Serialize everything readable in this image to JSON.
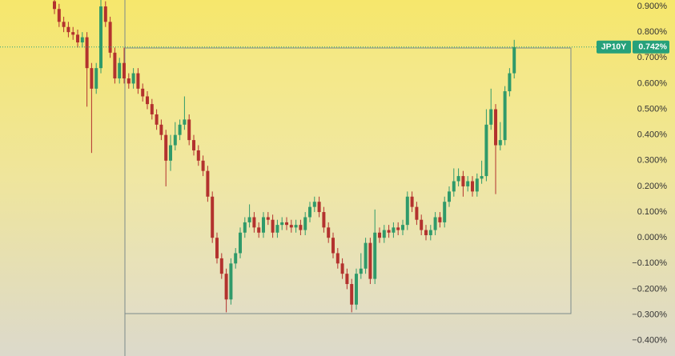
{
  "chart_data": {
    "type": "candlestick",
    "symbol": "JP10Y",
    "price_tag": {
      "value": 0.742,
      "label": "0.742%"
    },
    "up_color": "#2f9a6a",
    "down_color": "#b3322e",
    "tag_color": "#26a17a",
    "ylim": [
      -0.46,
      0.925
    ],
    "yticks": [
      {
        "value": 0.9,
        "label": "0.900%"
      },
      {
        "value": 0.8,
        "label": "0.800%"
      },
      {
        "value": 0.7,
        "label": "0.700%"
      },
      {
        "value": 0.6,
        "label": "0.600%"
      },
      {
        "value": 0.5,
        "label": "0.500%"
      },
      {
        "value": 0.4,
        "label": "0.400%"
      },
      {
        "value": 0.3,
        "label": "0.300%"
      },
      {
        "value": 0.2,
        "label": "0.200%"
      },
      {
        "value": 0.1,
        "label": "0.100%"
      },
      {
        "value": 0,
        "label": "0.000%"
      },
      {
        "value": -0.1,
        "label": "−0.100%"
      },
      {
        "value": -0.2,
        "label": "−0.200%"
      },
      {
        "value": -0.3,
        "label": "−0.300%"
      },
      {
        "value": -0.4,
        "label": "−0.400%"
      }
    ],
    "open": [
      0.92,
      0.89,
      0.84,
      0.82,
      0.8,
      0.79,
      0.76,
      0.78,
      0.66,
      0.58,
      0.66,
      0.9,
      0.84,
      0.72,
      0.62,
      0.68,
      0.62,
      0.6,
      0.64,
      0.58,
      0.55,
      0.52,
      0.48,
      0.44,
      0.4,
      0.3,
      0.36,
      0.4,
      0.44,
      0.46,
      0.38,
      0.34,
      0.3,
      0.26,
      0.16,
      0.0,
      -0.08,
      -0.14,
      -0.24,
      -0.1,
      -0.06,
      0.02,
      0.06,
      0.08,
      0.04,
      0.02,
      0.08,
      0.07,
      0.02,
      0.05,
      0.06,
      0.05,
      0.04,
      0.05,
      0.03,
      0.08,
      0.12,
      0.14,
      0.1,
      0.04,
      0.0,
      -0.06,
      -0.1,
      -0.14,
      -0.18,
      -0.26,
      -0.14,
      -0.12,
      -0.02,
      -0.16,
      0.02,
      0.0,
      0.03,
      0.02,
      0.04,
      0.03,
      0.05,
      0.16,
      0.12,
      0.07,
      0.03,
      0.01,
      0.03,
      0.08,
      0.06,
      0.14,
      0.18,
      0.22,
      0.24,
      0.2,
      0.22,
      0.18,
      0.23,
      0.24,
      0.44,
      0.5,
      0.36,
      0.38,
      0.57,
      0.64
    ],
    "high": [
      0.94,
      0.91,
      0.86,
      0.84,
      0.82,
      0.81,
      0.8,
      0.8,
      0.68,
      0.68,
      0.93,
      0.92,
      0.86,
      0.74,
      0.7,
      0.74,
      0.64,
      0.66,
      0.66,
      0.6,
      0.57,
      0.54,
      0.5,
      0.46,
      0.42,
      0.4,
      0.45,
      0.46,
      0.55,
      0.48,
      0.4,
      0.36,
      0.32,
      0.28,
      0.18,
      0.02,
      -0.06,
      -0.12,
      -0.08,
      -0.04,
      0.04,
      0.08,
      0.13,
      0.1,
      0.06,
      0.1,
      0.1,
      0.09,
      0.07,
      0.08,
      0.08,
      0.07,
      0.07,
      0.07,
      0.1,
      0.14,
      0.16,
      0.16,
      0.12,
      0.06,
      0.02,
      -0.04,
      -0.08,
      -0.12,
      -0.16,
      -0.12,
      -0.06,
      0.0,
      0.0,
      0.11,
      0.04,
      0.05,
      0.05,
      0.06,
      0.06,
      0.07,
      0.18,
      0.18,
      0.14,
      0.09,
      0.05,
      0.05,
      0.1,
      0.1,
      0.16,
      0.2,
      0.27,
      0.27,
      0.26,
      0.24,
      0.24,
      0.25,
      0.3,
      0.5,
      0.58,
      0.52,
      0.45,
      0.59,
      0.66,
      0.77
    ],
    "low": [
      0.87,
      0.82,
      0.8,
      0.78,
      0.77,
      0.74,
      0.74,
      0.51,
      0.33,
      0.56,
      0.64,
      0.82,
      0.7,
      0.6,
      0.6,
      0.6,
      0.58,
      0.58,
      0.56,
      0.53,
      0.5,
      0.46,
      0.42,
      0.38,
      0.2,
      0.26,
      0.34,
      0.38,
      0.42,
      0.36,
      0.32,
      0.28,
      0.24,
      0.14,
      -0.02,
      -0.1,
      -0.16,
      -0.29,
      -0.26,
      -0.12,
      -0.08,
      0.0,
      0.04,
      0.02,
      0.0,
      0.0,
      0.05,
      0.0,
      0.0,
      0.03,
      0.03,
      0.02,
      0.02,
      0.01,
      0.01,
      0.06,
      0.1,
      0.08,
      0.02,
      -0.02,
      -0.08,
      -0.12,
      -0.16,
      -0.2,
      -0.29,
      -0.28,
      -0.16,
      -0.14,
      -0.18,
      -0.18,
      -0.02,
      -0.02,
      0.0,
      0.0,
      0.01,
      0.01,
      0.03,
      0.1,
      0.05,
      0.01,
      -0.01,
      -0.01,
      0.01,
      0.04,
      0.04,
      0.12,
      0.16,
      0.2,
      0.16,
      0.18,
      0.16,
      0.16,
      0.21,
      0.22,
      0.42,
      0.17,
      0.34,
      0.36,
      0.55,
      0.62
    ],
    "close": [
      0.89,
      0.84,
      0.82,
      0.8,
      0.79,
      0.76,
      0.78,
      0.66,
      0.58,
      0.66,
      0.9,
      0.84,
      0.72,
      0.62,
      0.68,
      0.62,
      0.6,
      0.64,
      0.58,
      0.55,
      0.52,
      0.48,
      0.44,
      0.4,
      0.3,
      0.36,
      0.4,
      0.44,
      0.46,
      0.38,
      0.34,
      0.3,
      0.26,
      0.16,
      0.0,
      -0.08,
      -0.14,
      -0.24,
      -0.1,
      -0.06,
      0.02,
      0.06,
      0.08,
      0.04,
      0.02,
      0.08,
      0.07,
      0.02,
      0.05,
      0.06,
      0.05,
      0.04,
      0.05,
      0.03,
      0.08,
      0.12,
      0.14,
      0.1,
      0.04,
      0.0,
      -0.06,
      -0.1,
      -0.14,
      -0.18,
      -0.26,
      -0.14,
      -0.12,
      -0.02,
      -0.16,
      0.02,
      0.0,
      0.03,
      0.02,
      0.04,
      0.03,
      0.05,
      0.16,
      0.12,
      0.07,
      0.03,
      0.01,
      0.03,
      0.08,
      0.06,
      0.14,
      0.18,
      0.22,
      0.24,
      0.2,
      0.22,
      0.18,
      0.23,
      0.24,
      0.44,
      0.5,
      0.36,
      0.38,
      0.57,
      0.64,
      0.742
    ]
  }
}
